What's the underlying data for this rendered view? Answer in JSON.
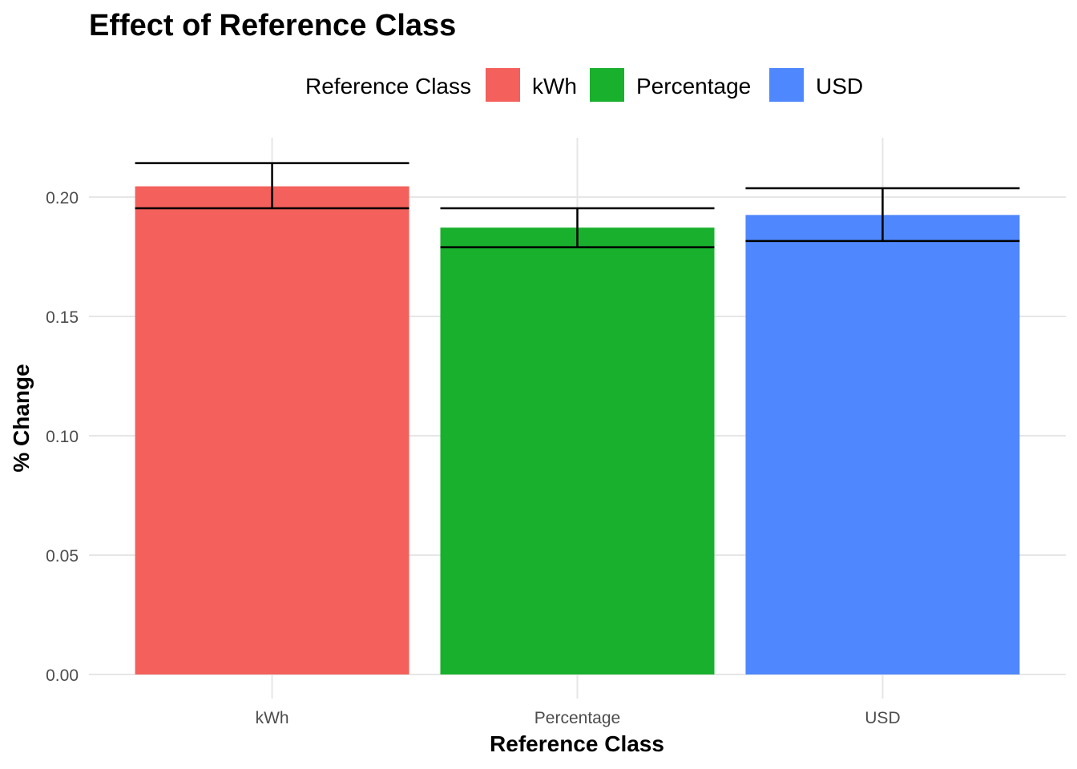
{
  "chart_data": {
    "type": "bar",
    "title": "Effect of Reference Class",
    "xlabel": "Reference Class",
    "ylabel": "% Change",
    "categories": [
      "kWh",
      "Percentage",
      "USD"
    ],
    "values": [
      0.2045,
      0.1872,
      0.1925
    ],
    "error_low": [
      0.1953,
      0.179,
      0.1816
    ],
    "error_high": [
      0.2142,
      0.1953,
      0.2037
    ],
    "colors": [
      "#f4605c",
      "#19b02d",
      "#4f87fe"
    ],
    "ylim": [
      0.0,
      0.2245
    ],
    "yticks": [
      0.0,
      0.05,
      0.1,
      0.15,
      0.2
    ],
    "ytick_labels": [
      "0.00",
      "0.05",
      "0.10",
      "0.15",
      "0.20"
    ],
    "grid": true,
    "legend": {
      "title": "Reference Class",
      "position": "top",
      "entries": [
        "kWh",
        "Percentage",
        "USD"
      ]
    }
  }
}
